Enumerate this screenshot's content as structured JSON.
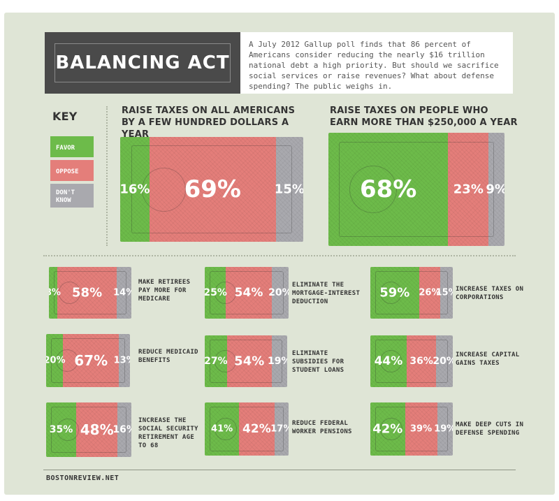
{
  "title": "BALANCING ACT",
  "intro": "A July 2012 Gallup poll finds that 86 percent of Americans consider reducing the nearly $16 trillion national debt a high priority. But should we sacrifice social services or raise revenues? What about defense spending? The public weighs in.",
  "key": {
    "title": "KEY",
    "favor": "FAVOR",
    "oppose": "OPPOSE",
    "dont_know": "DON'T KNOW"
  },
  "colors": {
    "favor": "#6dbb4a",
    "oppose": "#e47e7a",
    "dont_know": "#a9a9ae",
    "banner": "#4a4a4a",
    "background": "#dfe5d6"
  },
  "footer": "BOSTONREVIEW.NET",
  "chart_data": [
    {
      "type": "bar",
      "title": "RAISE TAXES ON ALL AMERICANS BY A FEW HUNDRED DOLLARS A YEAR",
      "categories": [
        "Favor",
        "Oppose",
        "Don't know"
      ],
      "values": [
        16,
        69,
        15
      ],
      "labels": [
        "16%",
        "69%",
        "15%"
      ]
    },
    {
      "type": "bar",
      "title": "RAISE TAXES ON PEOPLE WHO EARN MORE THAN $250,000 A YEAR",
      "categories": [
        "Favor",
        "Oppose",
        "Don't know"
      ],
      "values": [
        68,
        23,
        9
      ],
      "labels": [
        "68%",
        "23%",
        "9%"
      ]
    },
    {
      "type": "bar",
      "title": "MAKE RETIREES PAY MORE FOR MEDICARE",
      "categories": [
        "Favor",
        "Oppose",
        "Don't know"
      ],
      "values": [
        8,
        58,
        14
      ],
      "labels": [
        "8%",
        "58%",
        "14%"
      ]
    },
    {
      "type": "bar",
      "title": "ELIMINATE THE MORTGAGE-INTEREST DEDUCTION",
      "categories": [
        "Favor",
        "Oppose",
        "Don't know"
      ],
      "values": [
        25,
        54,
        20
      ],
      "labels": [
        "25%",
        "54%",
        "20%"
      ]
    },
    {
      "type": "bar",
      "title": "INCREASE TAXES ON CORPORATIONS",
      "categories": [
        "Favor",
        "Oppose",
        "Don't know"
      ],
      "values": [
        59,
        26,
        15
      ],
      "labels": [
        "59%",
        "26%",
        "15%"
      ]
    },
    {
      "type": "bar",
      "title": "REDUCE MEDICAID BENEFITS",
      "categories": [
        "Favor",
        "Oppose",
        "Don't know"
      ],
      "values": [
        20,
        67,
        13
      ],
      "labels": [
        "20%",
        "67%",
        "13%"
      ]
    },
    {
      "type": "bar",
      "title": "ELIMINATE SUBSIDIES FOR STUDENT LOANS",
      "categories": [
        "Favor",
        "Oppose",
        "Don't know"
      ],
      "values": [
        27,
        54,
        19
      ],
      "labels": [
        "27%",
        "54%",
        "19%"
      ]
    },
    {
      "type": "bar",
      "title": "INCREASE CAPITAL GAINS TAXES",
      "categories": [
        "Favor",
        "Oppose",
        "Don't know"
      ],
      "values": [
        44,
        36,
        20
      ],
      "labels": [
        "44%",
        "36%",
        "20%"
      ]
    },
    {
      "type": "bar",
      "title": "INCREASE THE SOCIAL SECURITY RETIREMENT AGE TO 68",
      "categories": [
        "Favor",
        "Oppose",
        "Don't know"
      ],
      "values": [
        35,
        48,
        16
      ],
      "labels": [
        "35%",
        "48%",
        "16%"
      ]
    },
    {
      "type": "bar",
      "title": "REDUCE FEDERAL WORKER PENSIONS",
      "categories": [
        "Favor",
        "Oppose",
        "Don't know"
      ],
      "values": [
        41,
        42,
        17
      ],
      "labels": [
        "41%",
        "42%",
        "17%"
      ]
    },
    {
      "type": "bar",
      "title": "MAKE DEEP CUTS IN DEFENSE SPENDING",
      "categories": [
        "Favor",
        "Oppose",
        "Don't know"
      ],
      "values": [
        42,
        39,
        19
      ],
      "labels": [
        "42%",
        "39%",
        "19%"
      ]
    }
  ]
}
